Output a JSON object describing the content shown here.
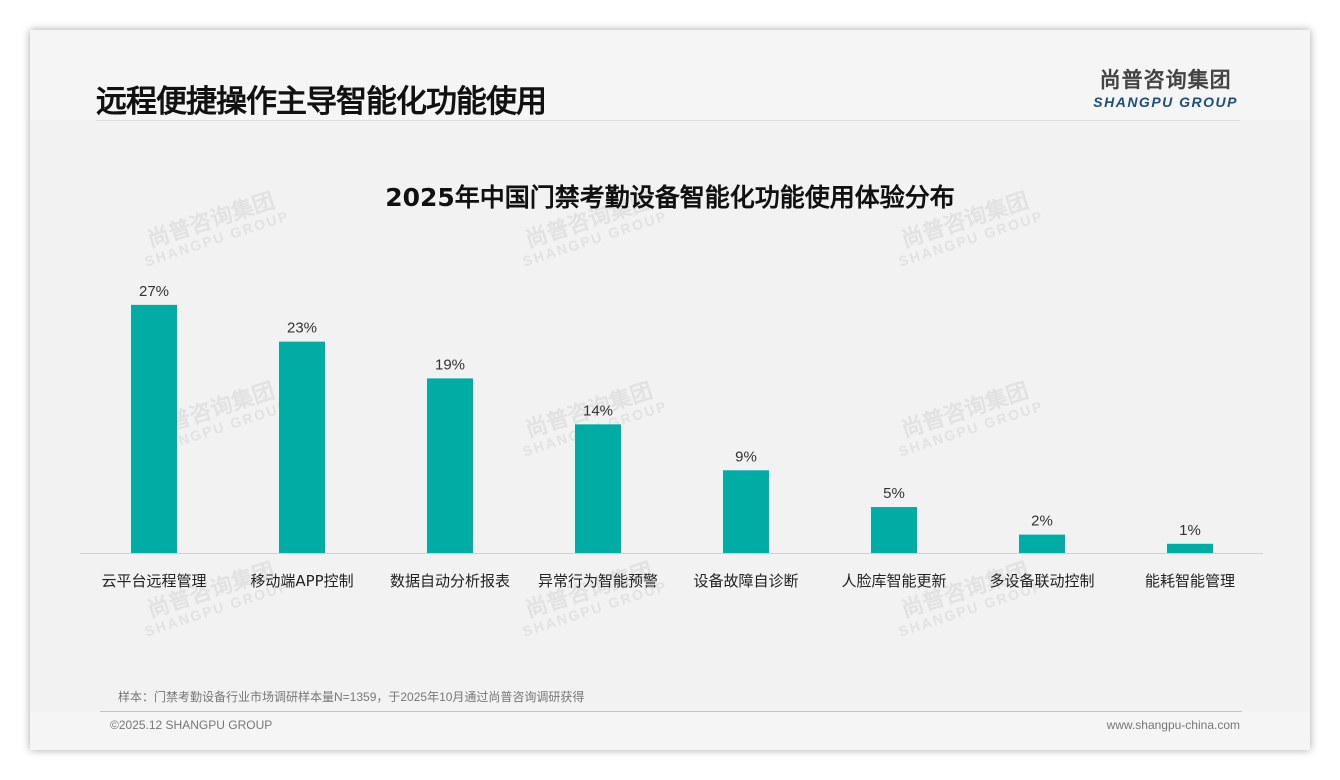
{
  "header": {
    "title": "远程便捷操作主导智能化功能使用",
    "logo_cn": "尚普咨询集团",
    "logo_en": "SHANGPU GROUP"
  },
  "watermark": {
    "cn": "尚普咨询集团",
    "en": "SHANGPU GROUP"
  },
  "chart_data": {
    "type": "bar",
    "title": "2025年中国门禁考勤设备智能化功能使用体验分布",
    "categories": [
      "云平台远程管理",
      "移动端APP控制",
      "数据自动分析报表",
      "异常行为智能预警",
      "设备故障自诊断",
      "人脸库智能更新",
      "多设备联动控制",
      "能耗智能管理"
    ],
    "values": [
      27,
      23,
      19,
      14,
      9,
      5,
      2,
      1
    ],
    "labels": [
      "27%",
      "23%",
      "19%",
      "14%",
      "9%",
      "5%",
      "2%",
      "1%"
    ],
    "unit": "%",
    "xlabel": "",
    "ylabel": "",
    "ylim": [
      0,
      30
    ],
    "grid": false,
    "color": "#00ada5"
  },
  "footer": {
    "note": "样本：门禁考勤设备行业市场调研样本量N=1359，于2025年10月通过尚普咨询调研获得",
    "copyright": "©2025.12 SHANGPU GROUP",
    "url": "www.shangpu-china.com"
  }
}
